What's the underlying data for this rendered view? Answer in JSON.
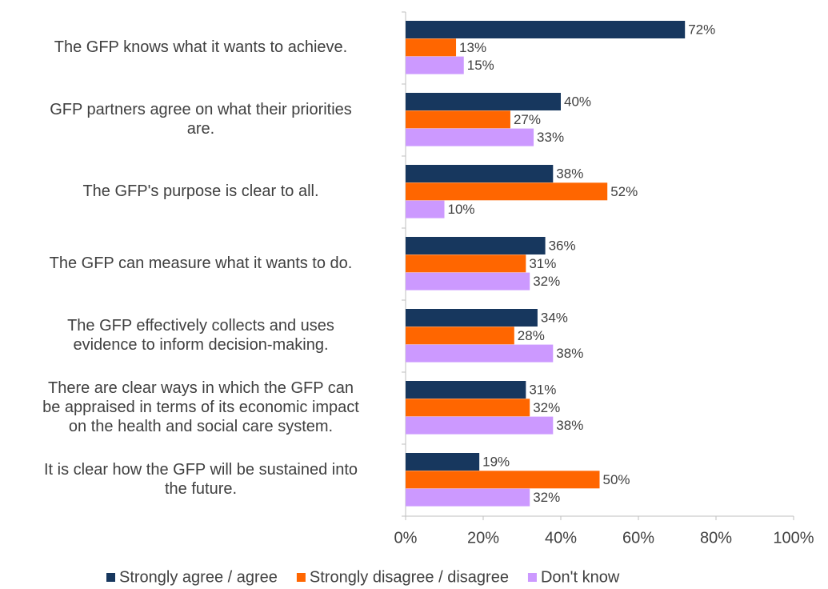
{
  "chart_data": {
    "type": "barh",
    "categories": [
      "The GFP knows what it wants to achieve.",
      "GFP partners agree on what their priorities\nare.",
      "The GFP's purpose is clear to all.",
      "The GFP can measure what it wants to do.",
      "The GFP effectively collects and uses\nevidence to inform decision-making.",
      "There are clear ways in which the GFP can\nbe appraised in terms of its economic impact\non the health and social care system.",
      "It is clear how the GFP will be sustained into\nthe future."
    ],
    "series": [
      {
        "name": "Strongly agree / agree",
        "color": "#17375e",
        "values": [
          72,
          40,
          38,
          36,
          34,
          31,
          19
        ],
        "value_labels": [
          "72%",
          "40%",
          "38%",
          "36%",
          "34%",
          "31%",
          "19%"
        ]
      },
      {
        "name": "Strongly disagree / disagree",
        "color": "#ff6600",
        "values": [
          13,
          27,
          52,
          31,
          28,
          32,
          50
        ],
        "value_labels": [
          "13%",
          "27%",
          "52%",
          "31%",
          "28%",
          "32%",
          "50%"
        ]
      },
      {
        "name": "Don't know",
        "color": "#cc99ff",
        "values": [
          15,
          33,
          10,
          32,
          38,
          38,
          32
        ],
        "value_labels": [
          "15%",
          "33%",
          "10%",
          "32%",
          "38%",
          "38%",
          "32%"
        ]
      }
    ],
    "xlim": [
      0,
      100
    ],
    "xticks": [
      {
        "value": 0,
        "label": "0%"
      },
      {
        "value": 20,
        "label": "20%"
      },
      {
        "value": 40,
        "label": "40%"
      },
      {
        "value": 60,
        "label": "60%"
      },
      {
        "value": 80,
        "label": "80%"
      },
      {
        "value": 100,
        "label": "100%"
      }
    ],
    "grid": false,
    "legend": "bottom"
  }
}
